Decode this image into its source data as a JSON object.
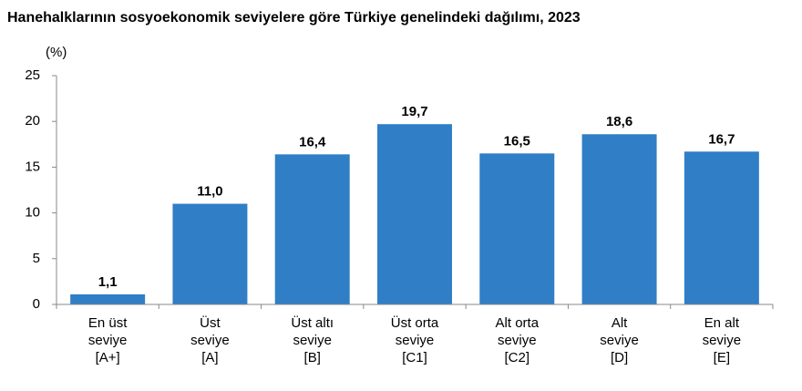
{
  "chart_data": {
    "type": "bar",
    "title": "Hanehalklarının sosyoekonomik seviyelere göre Türkiye genelindeki dağılımı, 2023",
    "y_label": "(%)",
    "categories": [
      "En üst\nseviye\n[A+]",
      "Üst\nseviye\n[A]",
      "Üst altı\nseviye\n[B]",
      "Üst orta\nseviye\n[C1]",
      "Alt orta\nseviye\n[C2]",
      "Alt\nseviye\n[D]",
      "En alt\nseviye\n[E]"
    ],
    "values": [
      1.1,
      11.0,
      16.4,
      19.7,
      16.5,
      18.6,
      16.7
    ],
    "value_labels": [
      "1,1",
      "11,0",
      "16,4",
      "19,7",
      "16,5",
      "18,6",
      "16,7"
    ],
    "color": "#2f7ec6",
    "ylim": [
      0,
      25
    ],
    "yticks": [
      0,
      5,
      10,
      15,
      20,
      25
    ],
    "grid": false
  }
}
